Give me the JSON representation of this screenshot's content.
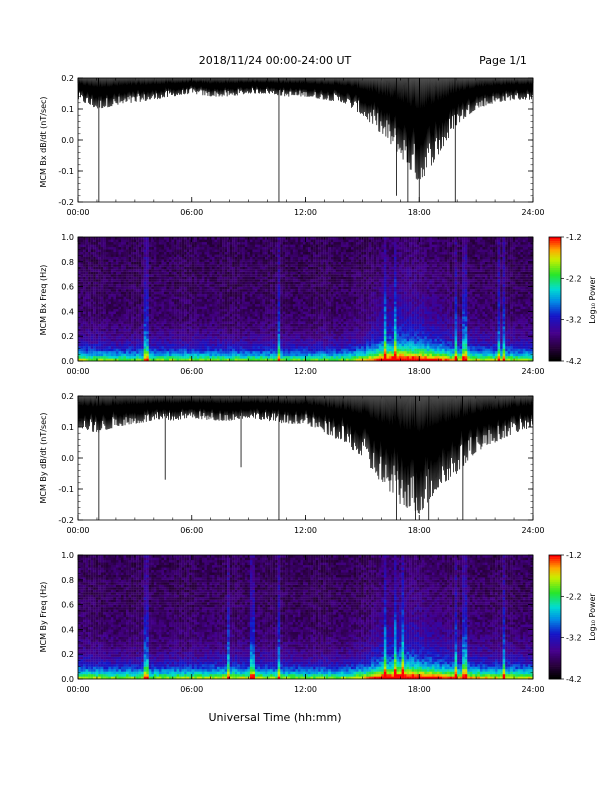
{
  "header": {
    "title": "2018/11/24  00:00-24:00 UT",
    "page": "Page 1/1"
  },
  "footer": {
    "xlabel": "Universal Time (hh:mm)"
  },
  "colorbar_label": "Log₁₀ Power",
  "chart_data": [
    {
      "type": "line",
      "name": "bx-dbdt",
      "ylabel": "MCM Bx dB/dt (nT/sec)",
      "xlim": [
        0,
        24
      ],
      "ylim": [
        -0.2,
        0.2
      ],
      "x_tick_labels": [
        "00:00",
        "06:00",
        "12:00",
        "18:00",
        "24:00"
      ],
      "y_tick_labels": [
        "0.2",
        "0.1",
        "0.0",
        "-0.1",
        "-0.2"
      ],
      "envelope": {
        "x": [
          0,
          1,
          2,
          3,
          4,
          5,
          6,
          7,
          8,
          9,
          10,
          11,
          12,
          13,
          14,
          15,
          16,
          17,
          18,
          19,
          20,
          21,
          22,
          23,
          24
        ],
        "upper": [
          0.2,
          0.2,
          0.2,
          0.2,
          0.2,
          0.2,
          0.2,
          0.2,
          0.2,
          0.2,
          0.2,
          0.2,
          0.2,
          0.2,
          0.2,
          0.2,
          0.2,
          0.2,
          0.2,
          0.2,
          0.2,
          0.2,
          0.2,
          0.2,
          0.2
        ],
        "lower": [
          0.13,
          0.1,
          0.11,
          0.12,
          0.13,
          0.14,
          0.15,
          0.14,
          0.14,
          0.15,
          0.15,
          0.14,
          0.14,
          0.13,
          0.12,
          0.08,
          0.02,
          -0.05,
          -0.14,
          -0.05,
          0.05,
          0.1,
          0.12,
          0.13,
          0.13
        ]
      },
      "spikes": [
        {
          "x": 1.1,
          "y": -0.2
        },
        {
          "x": 10.6,
          "y": -0.2
        },
        {
          "x": 16.8,
          "y": -0.18
        },
        {
          "x": 17.4,
          "y": -0.2
        },
        {
          "x": 18.0,
          "y": -0.2
        },
        {
          "x": 19.9,
          "y": -0.2
        }
      ]
    },
    {
      "type": "heatmap",
      "name": "bx-freq",
      "ylabel": "MCM Bx Freq (Hz)",
      "xlim": [
        0,
        24
      ],
      "ylim": [
        0,
        1.0
      ],
      "x_tick_labels": [
        "00:00",
        "06:00",
        "12:00",
        "18:00",
        "24:00"
      ],
      "y_tick_labels": [
        "1.0",
        "0.8",
        "0.6",
        "0.4",
        "0.2",
        "0.0"
      ],
      "colorbar": {
        "label": "Log₁₀ Power",
        "range": [
          -4.2,
          -1.2
        ],
        "tick_labels": [
          "-1.2",
          "-2.2",
          "-3.2",
          "-4.2"
        ]
      },
      "activity_profile": {
        "x": [
          0,
          2,
          4,
          6,
          8,
          10,
          12,
          14,
          15,
          16,
          17,
          18,
          19,
          20,
          22,
          24
        ],
        "level": [
          0.25,
          0.2,
          0.2,
          0.22,
          0.2,
          0.2,
          0.18,
          0.2,
          0.3,
          0.5,
          0.6,
          0.55,
          0.45,
          0.3,
          0.25,
          0.22
        ]
      },
      "streaks": [
        3.6,
        10.6,
        16.2,
        16.7,
        19.9,
        20.4,
        22.2,
        22.5
      ]
    },
    {
      "type": "line",
      "name": "by-dbdt",
      "ylabel": "MCM By dB/dt (nT/sec)",
      "xlim": [
        0,
        24
      ],
      "ylim": [
        -0.2,
        0.2
      ],
      "x_tick_labels": [
        "00:00",
        "06:00",
        "12:00",
        "18:00",
        "24:00"
      ],
      "y_tick_labels": [
        "0.2",
        "0.1",
        "0.0",
        "-0.1",
        "-0.2"
      ],
      "envelope": {
        "x": [
          0,
          1,
          2,
          3,
          4,
          5,
          6,
          7,
          8,
          9,
          10,
          11,
          12,
          13,
          14,
          15,
          16,
          17,
          18,
          19,
          20,
          21,
          22,
          23,
          24
        ],
        "upper": [
          0.2,
          0.2,
          0.2,
          0.2,
          0.2,
          0.2,
          0.2,
          0.2,
          0.2,
          0.2,
          0.2,
          0.2,
          0.2,
          0.2,
          0.2,
          0.2,
          0.2,
          0.2,
          0.2,
          0.2,
          0.2,
          0.2,
          0.2,
          0.2,
          0.2
        ],
        "lower": [
          0.1,
          0.08,
          0.1,
          0.11,
          0.12,
          0.12,
          0.13,
          0.12,
          0.12,
          0.13,
          0.12,
          0.11,
          0.11,
          0.08,
          0.05,
          0.0,
          -0.08,
          -0.15,
          -0.18,
          -0.1,
          -0.05,
          0.02,
          0.05,
          0.08,
          0.1
        ]
      },
      "spikes": [
        {
          "x": 1.1,
          "y": -0.2
        },
        {
          "x": 4.6,
          "y": -0.07
        },
        {
          "x": 8.6,
          "y": -0.03
        },
        {
          "x": 10.6,
          "y": -0.2
        },
        {
          "x": 16.8,
          "y": -0.2
        },
        {
          "x": 17.8,
          "y": -0.2
        },
        {
          "x": 18.5,
          "y": -0.2
        },
        {
          "x": 20.3,
          "y": -0.2
        }
      ]
    },
    {
      "type": "heatmap",
      "name": "by-freq",
      "ylabel": "MCM By Freq (Hz)",
      "xlim": [
        0,
        24
      ],
      "ylim": [
        0,
        1.0
      ],
      "x_tick_labels": [
        "00:00",
        "06:00",
        "12:00",
        "18:00",
        "24:00"
      ],
      "y_tick_labels": [
        "1.0",
        "0.8",
        "0.6",
        "0.4",
        "0.2",
        "0.0"
      ],
      "colorbar": {
        "label": "Log₁₀ Power",
        "range": [
          -4.2,
          -1.2
        ],
        "tick_labels": [
          "-1.2",
          "-2.2",
          "-3.2",
          "-4.2"
        ]
      },
      "activity_profile": {
        "x": [
          0,
          2,
          4,
          6,
          8,
          10,
          12,
          14,
          15,
          16,
          17,
          18,
          19,
          20,
          22,
          24
        ],
        "level": [
          0.28,
          0.22,
          0.22,
          0.25,
          0.28,
          0.25,
          0.2,
          0.22,
          0.3,
          0.5,
          0.62,
          0.55,
          0.45,
          0.35,
          0.3,
          0.28
        ]
      },
      "streaks": [
        3.6,
        7.9,
        9.2,
        10.6,
        16.2,
        16.7,
        17.1,
        19.9,
        20.4,
        22.5
      ]
    }
  ]
}
